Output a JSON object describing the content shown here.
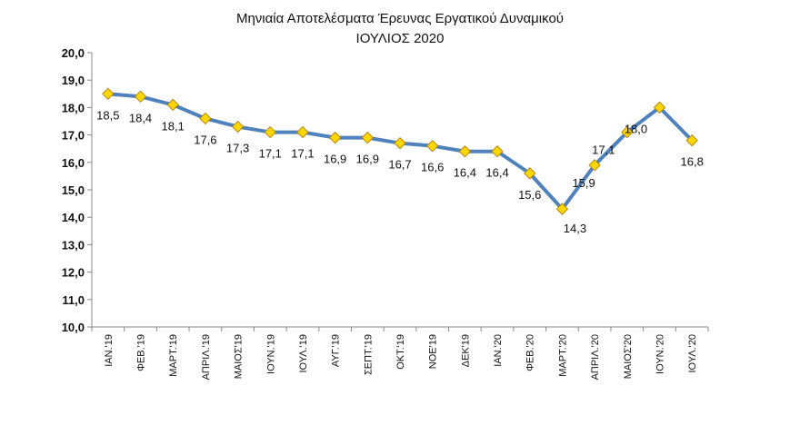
{
  "chart_data": {
    "type": "line",
    "title": "Μηνιαία Αποτελέσματα Έρευνας Εργατικού Δυναμικού",
    "subtitle": "ΙΟΥΛΙΟΣ 2020",
    "xlabel": "",
    "ylabel": "",
    "categories": [
      "ΙΑΝ.'19",
      "ΦΕΒ.'19",
      "ΜΑΡΤ.'19",
      "ΑΠΡΙΛ.'19",
      "ΜΑΙΟΣ'19",
      "ΙΟΥΝ.'19",
      "ΙΟΥΛ.'19",
      "ΑΥΓ.'19",
      "ΣΕΠΤ.'19",
      "ΟΚΤ.'19",
      "ΝΟΕ'19",
      "ΔΕΚ'19",
      "ΙΑΝ.'20",
      "ΦΕΒ.'20",
      "ΜΑΡΤ.'20",
      "ΑΠΡΙΛ.'20",
      "ΜΑΙΟΣ'20",
      "ΙΟΥΝ.'20",
      "ΙΟΥΛ.'20"
    ],
    "values": [
      18.5,
      18.4,
      18.1,
      17.6,
      17.3,
      17.1,
      17.1,
      16.9,
      16.9,
      16.7,
      16.6,
      16.4,
      16.4,
      15.6,
      14.3,
      15.9,
      17.1,
      18.0,
      16.8
    ],
    "data_labels": [
      "18,5",
      "18,4",
      "18,1",
      "17,6",
      "17,3",
      "17,1",
      "17,1",
      "16,9",
      "16,9",
      "16,7",
      "16,6",
      "16,4",
      "16,4",
      "15,6",
      "14,3",
      "15,9",
      "17,1",
      "18,0",
      "16,8"
    ],
    "ylim": [
      10,
      20
    ],
    "yticks": [
      "10,0",
      "11,0",
      "12,0",
      "13,0",
      "14,0",
      "15,0",
      "16,0",
      "17,0",
      "18,0",
      "19,0",
      "20,0"
    ],
    "grid": false,
    "legend": "none",
    "line_color": "#4F81BD",
    "marker": "diamond",
    "marker_color": "#FFD700"
  }
}
